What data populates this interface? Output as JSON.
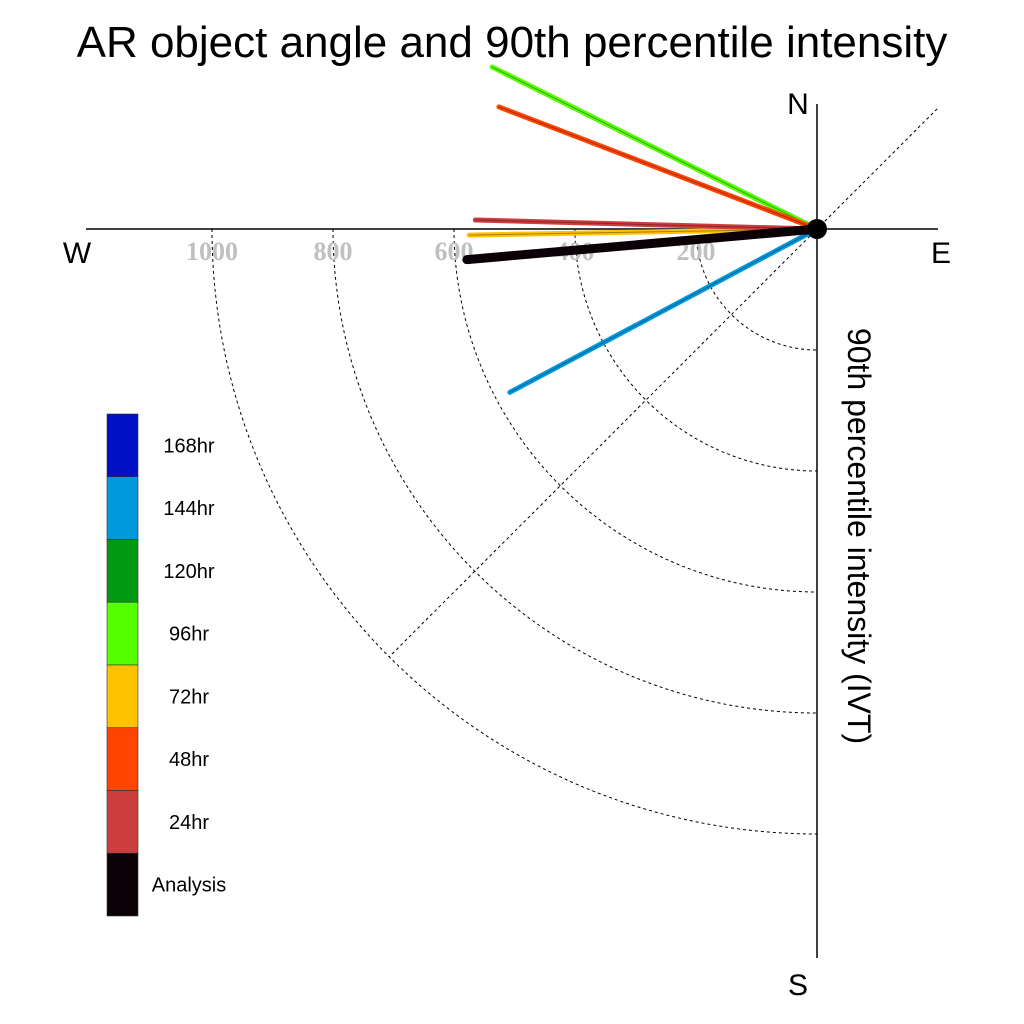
{
  "chart_data": {
    "type": "polar-vector",
    "title": "AR object angle and 90th percentile intensity",
    "ylabel": "90th percentile intensity (IVT)",
    "compass": {
      "north": "N",
      "south": "S",
      "east": "E",
      "west": "W"
    },
    "radial_ticks": [
      200,
      400,
      600,
      800,
      1000
    ],
    "radial_max": 1200,
    "grid": true,
    "legend_position": "left",
    "angle_unit": "degrees clockwise from East",
    "series": [
      {
        "name": "168hr",
        "color": "#0011c4",
        "members": []
      },
      {
        "name": "144hr",
        "color": "#0099dd",
        "members": [
          {
            "angle": -28,
            "intensity": 575
          }
        ]
      },
      {
        "name": "120hr",
        "color": "#009911",
        "members": [
          {
            "angle": 26.5,
            "intensity": 575
          }
        ]
      },
      {
        "name": "96hr",
        "color": "#55ff00",
        "members": [
          {
            "angle": 26.5,
            "intensity": 600
          }
        ]
      },
      {
        "name": "72hr",
        "color": "#ffc200",
        "members": [
          {
            "angle": -1,
            "intensity": 575
          }
        ]
      },
      {
        "name": "48hr",
        "color": "#ff4400",
        "members": [
          {
            "angle": 21,
            "intensity": 563
          }
        ]
      },
      {
        "name": "24hr",
        "color": "#cc3d3d",
        "members": [
          {
            "angle": 1.5,
            "intensity": 565
          }
        ]
      },
      {
        "name": "Analysis",
        "color": "#0a0006",
        "members": [
          {
            "angle": -5,
            "intensity": 581
          }
        ]
      }
    ]
  }
}
